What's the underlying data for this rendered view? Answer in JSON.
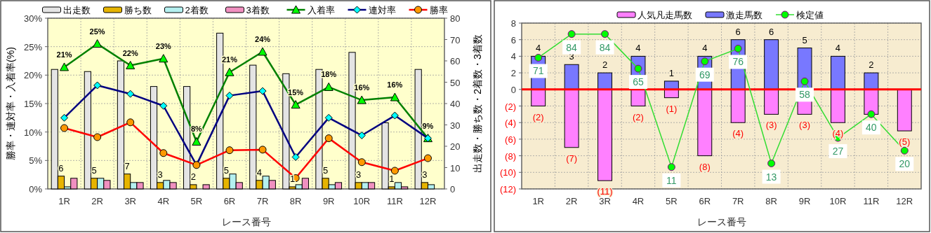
{
  "chart_data": [
    {
      "type": "bar",
      "categories": [
        "1R",
        "2R",
        "3R",
        "4R",
        "5R",
        "6R",
        "7R",
        "8R",
        "9R",
        "10R",
        "11R",
        "12R"
      ],
      "xlabel": "レース番号",
      "ylabel": "勝率・連対率・入着率(%)",
      "y2label": "出走数・勝ち数・2着数・3着数",
      "ylim": [
        0,
        30
      ],
      "yticks": [
        {
          "value": 0,
          "label": "0%"
        },
        {
          "value": 5,
          "label": "5%"
        },
        {
          "value": 10,
          "label": "10%"
        },
        {
          "value": 15,
          "label": "15%"
        },
        {
          "value": 20,
          "label": "20%"
        },
        {
          "value": 25,
          "label": "25%"
        },
        {
          "value": 30,
          "label": "30%"
        }
      ],
      "y2lim": [
        0,
        80
      ],
      "y2ticks": [
        0,
        10,
        20,
        30,
        40,
        50,
        60,
        70,
        80
      ],
      "grid": true,
      "legend": "top",
      "series": [
        {
          "name": "出走数",
          "axis": "y2",
          "color": "#e4e4e4",
          "values": [
            56,
            55,
            60,
            48,
            48,
            73,
            58,
            54,
            56,
            64,
            31,
            56
          ]
        },
        {
          "name": "勝ち数",
          "axis": "y2",
          "color": "#e6b400",
          "values": [
            6,
            5,
            7,
            3,
            2,
            5,
            4,
            1,
            5,
            3,
            1,
            3
          ],
          "value_labels": [
            "6",
            "5",
            "7",
            "3",
            "2",
            "5",
            "4",
            "1",
            "5",
            "3",
            "1",
            "3"
          ]
        },
        {
          "name": "2着数",
          "axis": "y2",
          "color": "#b4f0f0",
          "values": [
            1,
            5,
            3,
            4,
            0,
            7,
            6,
            2,
            2,
            3,
            3,
            2
          ]
        },
        {
          "name": "3着数",
          "axis": "y2",
          "color": "#f090c0",
          "values": [
            5,
            4,
            3,
            3,
            2,
            3,
            4,
            5,
            3,
            3,
            1,
            0
          ]
        },
        {
          "name": "入着率",
          "type": "line",
          "color": "#008000",
          "marker": "triangle",
          "values": [
            21.4,
            25.5,
            21.7,
            22.9,
            8.3,
            20.5,
            24.1,
            14.8,
            17.9,
            15.6,
            16.1,
            8.9
          ],
          "value_labels": [
            "21%",
            "25%",
            "22%",
            "23%",
            "8%",
            "21%",
            "24%",
            "15%",
            "18%",
            "16%",
            "16%",
            "9%"
          ]
        },
        {
          "name": "連対率",
          "type": "line",
          "color": "#000080",
          "marker": "diamond",
          "values": [
            12.5,
            18.2,
            16.7,
            14.6,
            4.2,
            16.4,
            17.2,
            5.6,
            12.5,
            9.4,
            12.9,
            8.9
          ]
        },
        {
          "name": "勝率",
          "type": "line",
          "color": "#ff0000",
          "marker": "circle",
          "values": [
            10.7,
            9.1,
            11.7,
            6.3,
            4.2,
            6.8,
            6.9,
            1.9,
            8.9,
            4.7,
            3.2,
            5.4
          ]
        }
      ]
    },
    {
      "type": "bar",
      "stacked": true,
      "categories": [
        "1R",
        "2R",
        "3R",
        "4R",
        "5R",
        "6R",
        "7R",
        "8R",
        "9R",
        "10R",
        "11R",
        "12R"
      ],
      "xlabel": "レース番号",
      "ylim": [
        -12,
        8
      ],
      "yticks": [
        {
          "value": -12,
          "label": "(12)"
        },
        {
          "value": -10,
          "label": "(10)"
        },
        {
          "value": -8,
          "label": "(8)"
        },
        {
          "value": -6,
          "label": "(6)"
        },
        {
          "value": -4,
          "label": "(4)"
        },
        {
          "value": -2,
          "label": "(2)"
        },
        0,
        2,
        4,
        6,
        8
      ],
      "y2lim": [
        -1,
        90
      ],
      "grid": true,
      "legend": "top",
      "ref_lines": [
        {
          "axis": "y",
          "value": 0,
          "color": "#ff0000"
        }
      ],
      "series": [
        {
          "name": "人気凡走馬数",
          "color": "#ff80ff",
          "values": [
            -2,
            -7,
            -11,
            -2,
            -1,
            -8,
            -4,
            -3,
            -3,
            -4,
            -3,
            -5
          ],
          "value_labels": [
            "(2)",
            "(7)",
            "(11)",
            "(2)",
            "(1)",
            "(8)",
            "(4)",
            "(3)",
            "(3)",
            "(4)",
            null,
            "(5)"
          ]
        },
        {
          "name": "激走馬数",
          "color": "#7878ff",
          "values": [
            4,
            3,
            2,
            4,
            1,
            4,
            6,
            6,
            5,
            4,
            2,
            0
          ],
          "value_labels": [
            "4",
            "3",
            "2",
            "4",
            "1",
            "4",
            "6",
            "6",
            "5",
            "4",
            "2",
            null
          ]
        },
        {
          "name": "検定値",
          "type": "line",
          "axis": "y2",
          "color": "#33dd33",
          "marker": "circle",
          "values": [
            71,
            84,
            84,
            65,
            11,
            69,
            76,
            13,
            58,
            27,
            40,
            20
          ],
          "value_labels": [
            "71",
            "84",
            "84",
            "65",
            "11",
            "69",
            "76",
            "13",
            "58",
            "27",
            "40",
            "20"
          ]
        }
      ]
    }
  ]
}
